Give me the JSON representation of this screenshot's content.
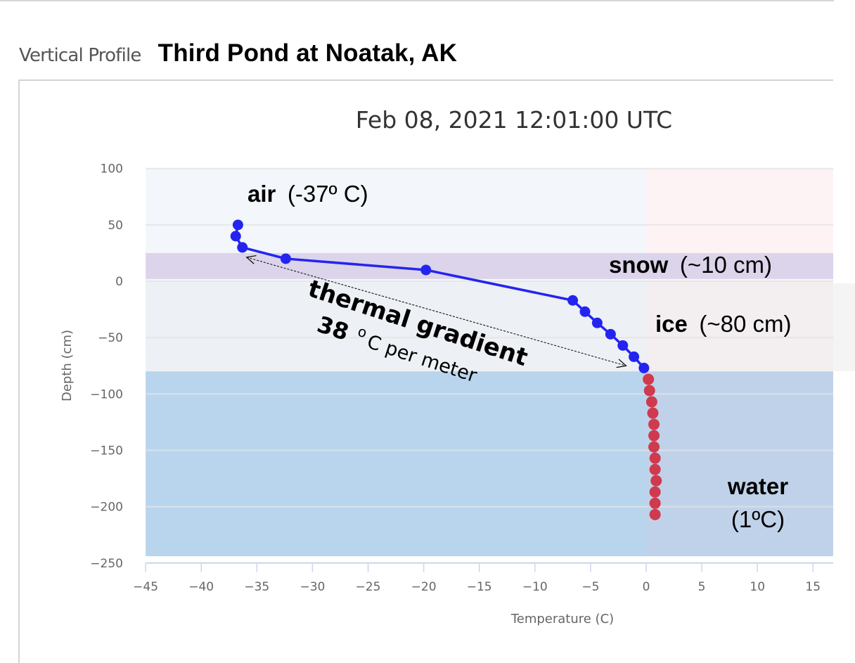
{
  "header": {
    "section_label": "Vertical Profile",
    "site_title": "Third Pond at Noatak, AK"
  },
  "colors": {
    "air_series": "#2424f0",
    "water_series": "#cf3a4e",
    "bg_negative": "#f3f6fa",
    "bg_positive": "#fdf3f4",
    "snow_band": "#dcd4ea",
    "ice_band": "#edf0f4",
    "ice_band_positive": "#f3eeef",
    "water_band": "#b9d5ed",
    "water_band_positive": "#c0d2e9",
    "grid": "#e2e4e8",
    "axis": "#ccd6eb"
  },
  "annotations": {
    "air_label": "air",
    "air_value": "(-37º C)",
    "snow_label": "snow",
    "snow_value": "(~10 cm)",
    "ice_label": "ice",
    "ice_value": "(~80 cm)",
    "water_label": "water",
    "water_value": "(1ºC)",
    "gradient_label": "thermal gradient",
    "gradient_value": "38",
    "gradient_unit_deg": "o",
    "gradient_unit": "C per meter"
  },
  "chart_data": {
    "type": "line",
    "title": "Feb 08, 2021 12:01:00 UTC",
    "xlabel": "Temperature (C)",
    "ylabel": "Depth (cm)",
    "xlim": [
      -45,
      17
    ],
    "ylim": [
      -250,
      100
    ],
    "x_ticks": [
      -45,
      -40,
      -35,
      -30,
      -25,
      -20,
      -15,
      -10,
      -5,
      0,
      5,
      10,
      15
    ],
    "y_ticks": [
      100,
      50,
      0,
      -50,
      -100,
      -150,
      -200,
      -250
    ],
    "grid": true,
    "legend": null,
    "bands": [
      {
        "name": "snow",
        "y_from": 2,
        "y_to": 25
      },
      {
        "name": "ice",
        "y_from": -80,
        "y_to": 0
      },
      {
        "name": "water",
        "y_from": -244,
        "y_to": -80
      }
    ],
    "series": [
      {
        "name": "air/snow/ice",
        "color": "#2424f0",
        "points": [
          {
            "x": -36.7,
            "y": 50
          },
          {
            "x": -36.9,
            "y": 40
          },
          {
            "x": -36.3,
            "y": 30
          },
          {
            "x": -32.4,
            "y": 20
          },
          {
            "x": -19.8,
            "y": 10
          },
          {
            "x": -6.6,
            "y": -17
          },
          {
            "x": -5.5,
            "y": -27
          },
          {
            "x": -4.4,
            "y": -37
          },
          {
            "x": -3.2,
            "y": -47
          },
          {
            "x": -2.1,
            "y": -57
          },
          {
            "x": -1.1,
            "y": -67
          },
          {
            "x": -0.2,
            "y": -77
          }
        ]
      },
      {
        "name": "water",
        "color": "#cf3a4e",
        "points": [
          {
            "x": 0.2,
            "y": -87
          },
          {
            "x": 0.3,
            "y": -97
          },
          {
            "x": 0.5,
            "y": -107
          },
          {
            "x": 0.6,
            "y": -117
          },
          {
            "x": 0.7,
            "y": -127
          },
          {
            "x": 0.7,
            "y": -137
          },
          {
            "x": 0.7,
            "y": -147
          },
          {
            "x": 0.8,
            "y": -157
          },
          {
            "x": 0.8,
            "y": -167
          },
          {
            "x": 0.9,
            "y": -177
          },
          {
            "x": 0.8,
            "y": -187
          },
          {
            "x": 0.8,
            "y": -197
          },
          {
            "x": 0.8,
            "y": -207
          }
        ]
      }
    ],
    "gradient_arrow": {
      "from": {
        "x": -36.3,
        "y": 20
      },
      "to": {
        "x": -1.8,
        "y": -80
      }
    }
  }
}
